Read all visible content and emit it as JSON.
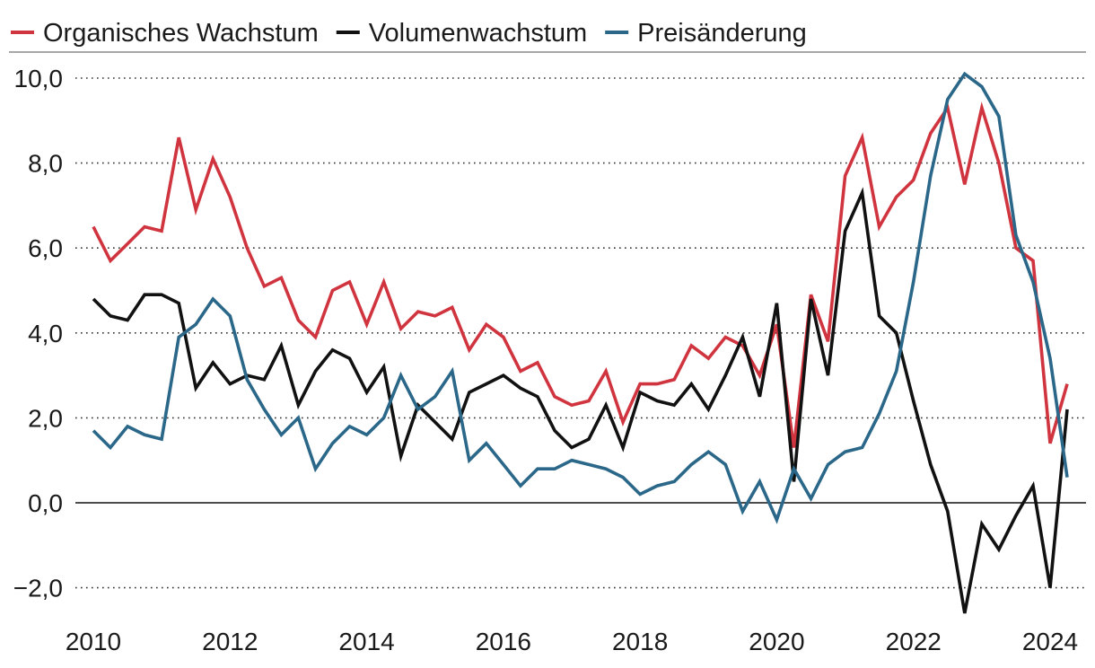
{
  "chart_data": {
    "type": "line",
    "title": "",
    "xlabel": "",
    "ylabel": "",
    "ylim": [
      -2.6,
      10.4
    ],
    "xlim": [
      2010,
      2024.4
    ],
    "y_ticks": [
      {
        "value": -2,
        "label": "−2,0"
      },
      {
        "value": 0,
        "label": "0,0"
      },
      {
        "value": 2,
        "label": "2,0"
      },
      {
        "value": 4,
        "label": "4,0"
      },
      {
        "value": 6,
        "label": "6,0"
      },
      {
        "value": 8,
        "label": "8,0"
      },
      {
        "value": 10,
        "label": "10,0"
      }
    ],
    "x_ticks": [
      {
        "value": 2010,
        "label": "2010"
      },
      {
        "value": 2012,
        "label": "2012"
      },
      {
        "value": 2014,
        "label": "2014"
      },
      {
        "value": 2016,
        "label": "2016"
      },
      {
        "value": 2018,
        "label": "2018"
      },
      {
        "value": 2020,
        "label": "2020"
      },
      {
        "value": 2022,
        "label": "2022"
      },
      {
        "value": 2024,
        "label": "2024"
      }
    ],
    "grid": "dotted horizontal",
    "legend_position": "top-left",
    "x_start": 2010,
    "x_step": 0.25,
    "series": [
      {
        "name": "Organisches Wachstum",
        "color": "#d0353f",
        "values": [
          6.5,
          5.7,
          6.1,
          6.5,
          6.4,
          8.6,
          6.9,
          8.1,
          7.2,
          6.0,
          5.1,
          5.3,
          4.3,
          3.9,
          5.0,
          5.2,
          4.2,
          5.2,
          4.1,
          4.5,
          4.4,
          4.6,
          3.6,
          4.2,
          3.9,
          3.1,
          3.3,
          2.5,
          2.3,
          2.4,
          3.1,
          1.9,
          2.8,
          2.8,
          2.9,
          3.7,
          3.4,
          3.9,
          3.7,
          3.0,
          4.2,
          1.3,
          4.9,
          3.8,
          7.7,
          8.6,
          6.5,
          7.2,
          7.6,
          8.7,
          9.3,
          7.5,
          9.3,
          8.0,
          6.0,
          5.7,
          1.4,
          2.8
        ]
      },
      {
        "name": "Volumenwachstum",
        "color": "#111111",
        "values": [
          4.8,
          4.4,
          4.3,
          4.9,
          4.9,
          4.7,
          2.7,
          3.3,
          2.8,
          3.0,
          2.9,
          3.7,
          2.3,
          3.1,
          3.6,
          3.4,
          2.6,
          3.2,
          1.1,
          2.3,
          1.9,
          1.5,
          2.6,
          2.8,
          3.0,
          2.7,
          2.5,
          1.7,
          1.3,
          1.5,
          2.3,
          1.3,
          2.6,
          2.4,
          2.3,
          2.8,
          2.2,
          3.0,
          3.9,
          2.5,
          4.7,
          0.5,
          4.8,
          3.0,
          6.4,
          7.3,
          4.4,
          4.0,
          2.4,
          0.9,
          -0.2,
          -2.6,
          -0.5,
          -1.1,
          -0.3,
          0.4,
          -2.0,
          2.2
        ]
      },
      {
        "name": "Preisänderung",
        "color": "#2a6789",
        "values": [
          1.7,
          1.3,
          1.8,
          1.6,
          1.5,
          3.9,
          4.2,
          4.8,
          4.4,
          2.9,
          2.2,
          1.6,
          2.0,
          0.8,
          1.4,
          1.8,
          1.6,
          2.0,
          3.0,
          2.2,
          2.5,
          3.1,
          1.0,
          1.4,
          0.9,
          0.4,
          0.8,
          0.8,
          1.0,
          0.9,
          0.8,
          0.6,
          0.2,
          0.4,
          0.5,
          0.9,
          1.2,
          0.9,
          -0.2,
          0.5,
          -0.4,
          0.8,
          0.1,
          0.9,
          1.2,
          1.3,
          2.1,
          3.1,
          5.2,
          7.7,
          9.5,
          10.1,
          9.8,
          9.1,
          6.3,
          5.2,
          3.4,
          0.6
        ]
      }
    ]
  }
}
